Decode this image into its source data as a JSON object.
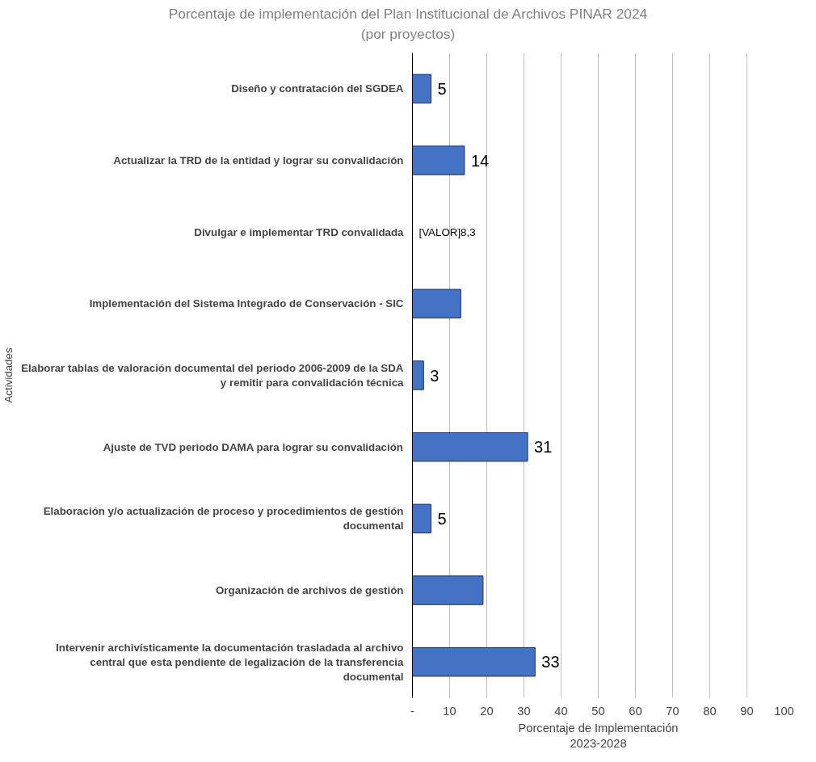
{
  "chart_data": {
    "type": "bar",
    "orientation": "horizontal",
    "title": "Porcentaje de implementación del Plan Institucional de Archivos PINAR 2024",
    "subtitle": "(por proyectos)",
    "xlabel": "Porcentaje de Implementación 2023-2028",
    "ylabel": "Actividades",
    "categories": [
      "Diseño y contratación del SGDEA",
      "Actualizar la TRD de la entidad y lograr su convalidación",
      "Divulgar e implementar TRD convalidada",
      "Implementación del Sistema Integrado de Conservación - SIC",
      "Elaborar tablas de valoración documental del periodo 2006-2009 de la SDA y remitir para convalidación técnica",
      "Ajuste de TVD periodo DAMA para lograr su convalidación",
      "Elaboración y/o actualización de proceso y procedimientos de gestión documental",
      "Organización de archivos de gestión",
      "Intervenir archivísticamente la documentación trasladada al archivo central que esta pendiente de legalización de la transferencia documental"
    ],
    "values": [
      5,
      14,
      null,
      13,
      3,
      31,
      5,
      19,
      33
    ],
    "value_labels": [
      "5",
      "14",
      "[VALOR]8,3",
      null,
      "3",
      "31",
      "5",
      null,
      "33"
    ],
    "color": "#4472c4",
    "xlim": [
      0,
      100
    ],
    "xticks": [
      {
        "value": 0,
        "label": "-"
      },
      10,
      20,
      30,
      40,
      50,
      60,
      70,
      80,
      90,
      100
    ],
    "grid": "x"
  }
}
